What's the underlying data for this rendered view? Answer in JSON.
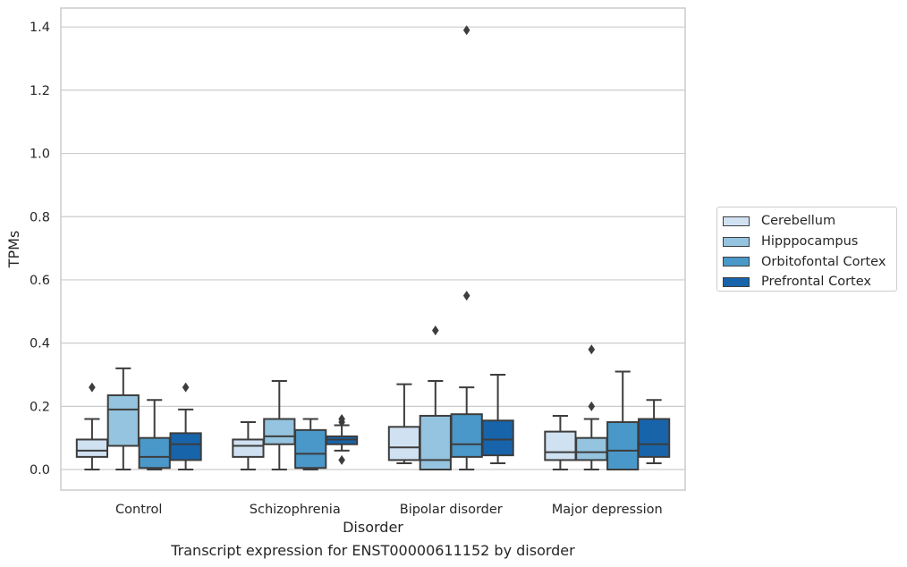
{
  "chart_data": {
    "type": "box",
    "xlabel": "Disorder",
    "ylabel": "TPMs",
    "ylim": [
      -0.065,
      1.46
    ],
    "yticks": [
      0.0,
      0.2,
      0.4,
      0.6,
      0.8,
      1.0,
      1.2,
      1.4
    ],
    "ytick_labels": [
      "0.0",
      "0.2",
      "0.4",
      "0.6",
      "0.8",
      "1.0",
      "1.2",
      "1.4"
    ],
    "grid": "horizontal",
    "legend_position": "right",
    "categories": [
      "Control",
      "Schizophrenia",
      "Bipolar disorder",
      "Major depression"
    ],
    "series": [
      {
        "name": "Cerebellum",
        "color": "#d0e1f2",
        "boxes": [
          {
            "min": 0.0,
            "q1": 0.04,
            "median": 0.06,
            "q3": 0.095,
            "max": 0.16,
            "outliers": [
              0.26
            ]
          },
          {
            "min": 0.0,
            "q1": 0.04,
            "median": 0.075,
            "q3": 0.095,
            "max": 0.15,
            "outliers": []
          },
          {
            "min": 0.02,
            "q1": 0.03,
            "median": 0.07,
            "q3": 0.135,
            "max": 0.27,
            "outliers": []
          },
          {
            "min": 0.0,
            "q1": 0.03,
            "median": 0.055,
            "q3": 0.12,
            "max": 0.17,
            "outliers": []
          }
        ]
      },
      {
        "name": "Hipppocampus",
        "color": "#94c4df",
        "boxes": [
          {
            "min": 0.0,
            "q1": 0.075,
            "median": 0.19,
            "q3": 0.235,
            "max": 0.32,
            "outliers": []
          },
          {
            "min": 0.0,
            "q1": 0.08,
            "median": 0.105,
            "q3": 0.16,
            "max": 0.28,
            "outliers": []
          },
          {
            "min": 0.0,
            "q1": 0.0,
            "median": 0.03,
            "q3": 0.17,
            "max": 0.28,
            "outliers": [
              0.44
            ]
          },
          {
            "min": 0.0,
            "q1": 0.03,
            "median": 0.055,
            "q3": 0.1,
            "max": 0.16,
            "outliers": [
              0.2,
              0.38
            ]
          }
        ]
      },
      {
        "name": "Orbitofontal Cortex",
        "color": "#4a98c9",
        "boxes": [
          {
            "min": 0.0,
            "q1": 0.005,
            "median": 0.04,
            "q3": 0.1,
            "max": 0.22,
            "outliers": []
          },
          {
            "min": 0.0,
            "q1": 0.005,
            "median": 0.05,
            "q3": 0.125,
            "max": 0.16,
            "outliers": []
          },
          {
            "min": 0.0,
            "q1": 0.04,
            "median": 0.08,
            "q3": 0.175,
            "max": 0.26,
            "outliers": [
              0.55,
              1.39
            ]
          },
          {
            "min": 0.0,
            "q1": 0.0,
            "median": 0.06,
            "q3": 0.15,
            "max": 0.31,
            "outliers": []
          }
        ]
      },
      {
        "name": "Prefrontal Cortex",
        "color": "#1764ab",
        "boxes": [
          {
            "min": 0.0,
            "q1": 0.03,
            "median": 0.08,
            "q3": 0.115,
            "max": 0.19,
            "outliers": [
              0.26
            ]
          },
          {
            "min": 0.06,
            "q1": 0.08,
            "median": 0.095,
            "q3": 0.105,
            "max": 0.14,
            "outliers": [
              0.03,
              0.15,
              0.16
            ]
          },
          {
            "min": 0.02,
            "q1": 0.045,
            "median": 0.095,
            "q3": 0.155,
            "max": 0.3,
            "outliers": []
          },
          {
            "min": 0.02,
            "q1": 0.04,
            "median": 0.08,
            "q3": 0.16,
            "max": 0.22,
            "outliers": []
          }
        ]
      }
    ]
  },
  "caption": "Transcript expression for ENST00000611152 by disorder"
}
